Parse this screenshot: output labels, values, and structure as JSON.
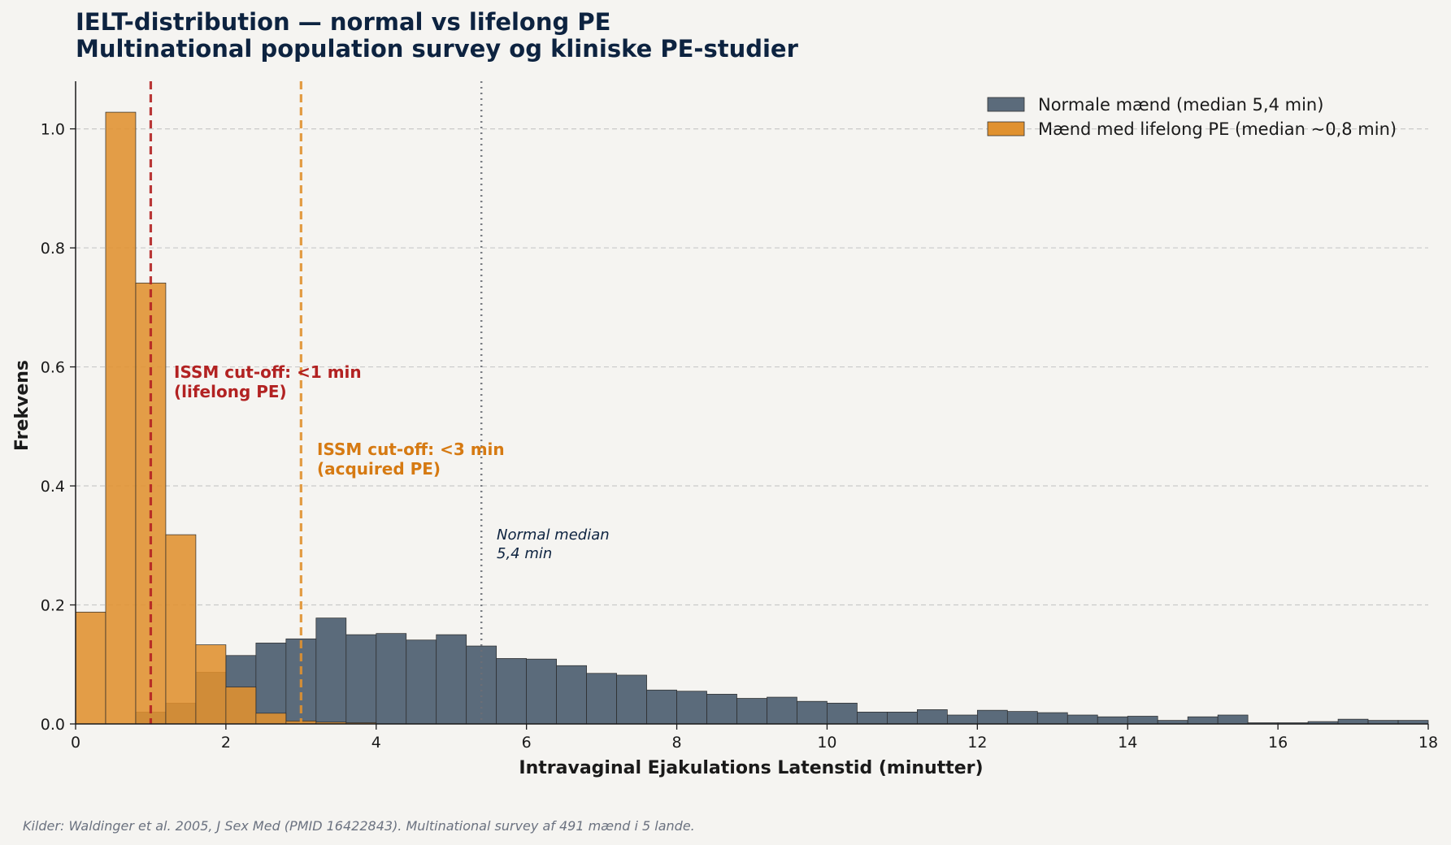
{
  "chart_data": {
    "type": "bar",
    "title_line1": "IELT-distribution — normal vs lifelong PE",
    "title_line2": "Multinational population survey og kliniske PE-studier",
    "xlabel": "Intravaginal Ejakulations Latenstid (minutter)",
    "ylabel": "Frekvens",
    "xlim": [
      0,
      18
    ],
    "ylim": [
      0,
      1.08
    ],
    "x_ticks": [
      0,
      2,
      4,
      6,
      8,
      10,
      12,
      14,
      16,
      18
    ],
    "x_tick_labels": [
      "0",
      "2",
      "4",
      "6",
      "8",
      "10",
      "12",
      "14",
      "16",
      "18"
    ],
    "y_ticks": [
      0.0,
      0.2,
      0.4,
      0.6,
      0.8,
      1.0
    ],
    "y_tick_labels": [
      "0.0",
      "0.2",
      "0.4",
      "0.6",
      "0.8",
      "1.0"
    ],
    "grid": "horizontal dashed",
    "legend_position": "top-right",
    "bin_width": 0.4,
    "series": [
      {
        "name": "Normale mænd (median 5,4 min)",
        "color": "#5b6b7b",
        "bin_starts": [
          0.8,
          1.2,
          1.6,
          2.0,
          2.4,
          2.8,
          3.2,
          3.6,
          4.0,
          4.4,
          4.8,
          5.2,
          5.6,
          6.0,
          6.4,
          6.8,
          7.2,
          7.6,
          8.0,
          8.4,
          8.8,
          9.2,
          9.6,
          10.0,
          10.4,
          10.8,
          11.2,
          11.6,
          12.0,
          12.4,
          12.8,
          13.2,
          13.6,
          14.0,
          14.4,
          14.8,
          15.2,
          15.6,
          16.0,
          16.4,
          16.8,
          17.2,
          17.6
        ],
        "values": [
          0.02,
          0.035,
          0.087,
          0.115,
          0.136,
          0.143,
          0.178,
          0.15,
          0.152,
          0.141,
          0.15,
          0.131,
          0.11,
          0.109,
          0.098,
          0.085,
          0.082,
          0.057,
          0.055,
          0.05,
          0.043,
          0.045,
          0.038,
          0.035,
          0.02,
          0.02,
          0.024,
          0.015,
          0.023,
          0.021,
          0.019,
          0.015,
          0.012,
          0.013,
          0.006,
          0.012,
          0.015,
          0.002,
          0.002,
          0.004,
          0.008,
          0.006,
          0.006
        ]
      },
      {
        "name": "Mænd med lifelong PE (median ~0,8 min)",
        "color": "#e0912f",
        "bin_starts": [
          0.0,
          0.4,
          0.8,
          1.2,
          1.6,
          2.0,
          2.4,
          2.8,
          3.2,
          3.6
        ],
        "values": [
          0.188,
          1.028,
          0.741,
          0.318,
          0.133,
          0.062,
          0.018,
          0.005,
          0.003,
          0.002
        ]
      }
    ],
    "reference_lines": [
      {
        "x": 1,
        "color": "#b22222",
        "style": "dashed",
        "label_line1": "ISSM cut-off: <1 min",
        "label_line2": "(lifelong PE)",
        "label_color": "#b22222"
      },
      {
        "x": 3,
        "color": "#e0912f",
        "style": "dashed",
        "label_line1": "ISSM cut-off: <3 min",
        "label_line2": "(acquired PE)",
        "label_color": "#d67a12"
      },
      {
        "x": 5.4,
        "color": "#6b6f76",
        "style": "dotted",
        "label_line1": "Normal median",
        "label_line2": "5,4 min",
        "label_color": "#0d2340"
      }
    ]
  },
  "footer": {
    "source": "Kilder: Waldinger et al. 2005, J Sex Med (PMID 16422843). Multinational survey af 491 mænd i 5 lande."
  }
}
